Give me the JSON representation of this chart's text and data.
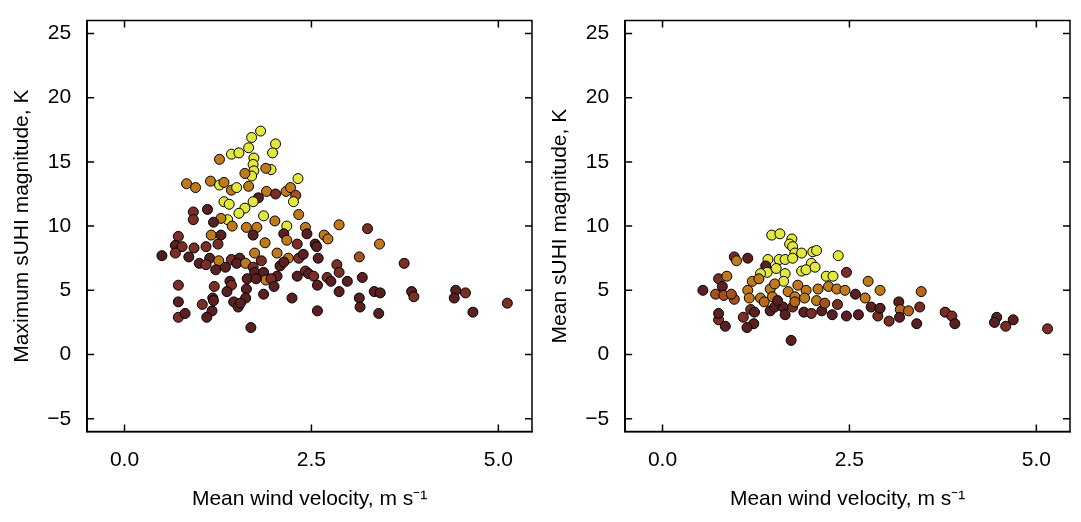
{
  "chart_data": [
    {
      "type": "scatter",
      "xlabel": "Mean wind velocity, m s⁻¹",
      "ylabel": "Maximum sUHI magnitude, K",
      "xlim": [
        -0.5,
        5.45
      ],
      "ylim": [
        -6,
        26
      ],
      "xticks": [
        {
          "value": 0,
          "label": "0.0"
        },
        {
          "value": 2.5,
          "label": "2.5"
        },
        {
          "value": 5,
          "label": "5.0"
        }
      ],
      "yticks": [
        {
          "value": -5,
          "label": "−5"
        },
        0,
        5,
        10,
        15,
        20,
        25
      ],
      "x": [
        1.82,
        1.7,
        2.02,
        1.98,
        1.66,
        1.43,
        1.53,
        1.73,
        1.72,
        1.73,
        1.96,
        1.89,
        1.7,
        1.61,
        1.27,
        2.32,
        0.83,
        0.95,
        1.15,
        1.27,
        1.33,
        1.43,
        1.5,
        1.66,
        1.9,
        2.02,
        2.16,
        2.22,
        2.29,
        2.26,
        1.79,
        1.72,
        1.33,
        1.4,
        1.61,
        1.53,
        1.38,
        1.86,
        2.17,
        2.33,
        0.92,
        0.92,
        1.11,
        1.29,
        1.19,
        1.44,
        2.01,
        1.63,
        1.77,
        2.42,
        2.87,
        3.25,
        3.41,
        0.72,
        1.16,
        1.29,
        1.72,
        2.13,
        2.44,
        2.67,
        2.72,
        1.88,
        2.17,
        2.31,
        2.55,
        2.57,
        0.68,
        0.77,
        0.93,
        1.09,
        1.25,
        0.5,
        0.68,
        0.86,
        1.14,
        1.26,
        1.43,
        1.54,
        1.74,
        1.83,
        2.04,
        2.19,
        2.33,
        2.39,
        2.59,
        3.14,
        1.0,
        1.09,
        1.22,
        1.35,
        1.5,
        1.62,
        1.72,
        2.08,
        2.13,
        1.74,
        1.86,
        2.04,
        2.31,
        2.42,
        2.46,
        2.53,
        2.71,
        2.84,
        2.87,
        2.98,
        3.18,
        2.76,
        2.58,
        1.89,
        1.96,
        2.0,
        1.64,
        1.76,
        1.41,
        1.43,
        1.63,
        1.37,
        1.2,
        0.72,
        2.87,
        3.34,
        3.42,
        3.14,
        3.15,
        3.4,
        2.58,
        2.24,
        1.86,
        1.62,
        1.46,
        1.52,
        1.55,
        1.18,
        1.19,
        1.04,
        1.17,
        1.1,
        0.72,
        0.72,
        0.81,
        1.69,
        3.74,
        3.84,
        3.87,
        4.43,
        4.41,
        4.56,
        4.66,
        5.12
      ],
      "values": [
        17.4,
        16.9,
        16.4,
        15.7,
        16.1,
        15.6,
        15.7,
        15.3,
        14.8,
        14.3,
        14.4,
        14.5,
        13.9,
        14.1,
        15.2,
        13.7,
        13.3,
        13.0,
        13.5,
        13.2,
        13.4,
        12.8,
        13.0,
        13.1,
        12.7,
        12.5,
        12.7,
        13.0,
        12.4,
        11.9,
        12.2,
        11.9,
        11.9,
        11.7,
        11.4,
        11.0,
        10.5,
        10.8,
        10.0,
        10.9,
        11.1,
        10.5,
        11.3,
        10.6,
        10.3,
        10.0,
        10.4,
        9.9,
        9.9,
        9.9,
        10.1,
        9.8,
        8.6,
        9.2,
        9.3,
        9.3,
        9.3,
        9.4,
        9.4,
        9.3,
        9.0,
        8.7,
        8.9,
        8.6,
        8.6,
        8.4,
        8.5,
        8.4,
        8.3,
        8.4,
        8.6,
        7.7,
        7.9,
        7.6,
        7.5,
        7.3,
        7.4,
        7.5,
        7.9,
        7.3,
        7.9,
        7.5,
        7.5,
        7.8,
        7.5,
        7.6,
        7.1,
        7.0,
        6.6,
        6.8,
        7.1,
        7.1,
        6.8,
        6.9,
        7.2,
        6.4,
        6.4,
        6.1,
        6.1,
        6.5,
        6.3,
        6.1,
        6.0,
        7.0,
        6.4,
        5.7,
        6.0,
        5.7,
        5.4,
        5.8,
        5.9,
        5.3,
        5.9,
        5.9,
        5.7,
        5.4,
        5.1,
        4.9,
        5.3,
        5.4,
        4.9,
        4.9,
        4.8,
        4.4,
        3.7,
        3.2,
        3.4,
        4.4,
        4.7,
        4.4,
        4.1,
        3.7,
        4.0,
        4.4,
        4.2,
        3.9,
        3.4,
        2.9,
        4.1,
        2.9,
        3.2,
        2.1,
        7.1,
        4.9,
        4.5,
        5.0,
        4.4,
        4.8,
        3.3,
        4.0
      ],
      "colors": [
        "#e3e83c",
        "#e3e83c",
        "#e3e83c",
        "#e3e83c",
        "#e3e83c",
        "#e3e83c",
        "#e3e83c",
        "#e3e83c",
        "#e3e83c",
        "#e3e83c",
        "#e3e83c",
        "#c07a1c",
        "#e3e83c",
        "#c07a1c",
        "#c07a1c",
        "#e3e83c",
        "#c07a1c",
        "#c07a1c",
        "#c07a1c",
        "#e3e83c",
        "#c07a1c",
        "#c07a1c",
        "#e3e83c",
        "#c07a1c",
        "#c07a1c",
        "#7a2e25",
        "#c07a1c",
        "#c07a1c",
        "#a5501e",
        "#e3e83c",
        "#5a1f20",
        "#e3e83c",
        "#e3e83c",
        "#e3e83c",
        "#e3e83c",
        "#e3e83c",
        "#e3e83c",
        "#e3e83c",
        "#e3e83c",
        "#c07a1c",
        "#7a2e25",
        "#7a2e25",
        "#5a1f20",
        "#c07a1c",
        "#5a1f20",
        "#c07a1c",
        "#c07a1c",
        "#c07a1c",
        "#c07a1c",
        "#c07a1c",
        "#c07a1c",
        "#7a2e25",
        "#c07a1c",
        "#7a2e25",
        "#c07a1c",
        "#5a1f20",
        "#5a1f20",
        "#5a1f20",
        "#5a1f20",
        "#c07a1c",
        "#c07a1c",
        "#c07a1c",
        "#c07a1c",
        "#7a2e25",
        "#5a1f20",
        "#5a1f20",
        "#5a1f20",
        "#7a2e25",
        "#7a2e25",
        "#7a2e25",
        "#7a2e25",
        "#4e1d1f",
        "#7a2e25",
        "#5a1f20",
        "#5a1f20",
        "#c07a1c",
        "#7a2e25",
        "#5a1f20",
        "#c07a1c",
        "#7a2e25",
        "#c07a1c",
        "#c07a1c",
        "#7a2e25",
        "#5a1f20",
        "#5a1f20",
        "#a5501e",
        "#5a1f20",
        "#7a2e25",
        "#5a1f20",
        "#5a1f20",
        "#5a1f20",
        "#c07a1c",
        "#7a2e25",
        "#5a1f20",
        "#5a1f20",
        "#5a1f20",
        "#5a1f20",
        "#5a1f20",
        "#5a1f20",
        "#7a2e25",
        "#5a1f20",
        "#7a2e25",
        "#7a2e25",
        "#7a2e25",
        "#7a2e25",
        "#5a1f20",
        "#5a1f20",
        "#5a1f20",
        "#5a1f20",
        "#c07a1c",
        "#7a2e25",
        "#5a1f20",
        "#5a1f20",
        "#5a1f20",
        "#5a1f20",
        "#7a2e25",
        "#5a1f20",
        "#5a1f20",
        "#7a2e25",
        "#7a2e25",
        "#5a1f20",
        "#5a1f20",
        "#5a1f20",
        "#5a1f20",
        "#5a1f20",
        "#5a1f20",
        "#5a1f20",
        "#5a1f20",
        "#5a1f20",
        "#5a1f20",
        "#5a1f20",
        "#5a1f20",
        "#5a1f20",
        "#5a1f20",
        "#5a1f20",
        "#7a2e25",
        "#5a1f20",
        "#5a1f20",
        "#5a1f20",
        "#7a2e25",
        "#5a1f20",
        "#5a1f20",
        "#7a2e25",
        "#5a1f20",
        "#7a2e25",
        "#5a1f20",
        "#5a1f20",
        "#7a2e25",
        "#5a1f20",
        "#7a2e25"
      ]
    },
    {
      "type": "scatter",
      "xlabel": "Mean wind velocity, m s⁻¹",
      "ylabel": "Mean sUHI magnitude, K",
      "xlim": [
        -0.5,
        5.45
      ],
      "ylim": [
        -6,
        26
      ],
      "xticks": [
        {
          "value": 0,
          "label": "0.0"
        },
        {
          "value": 2.5,
          "label": "2.5"
        },
        {
          "value": 5,
          "label": "5.0"
        }
      ],
      "yticks": [
        {
          "value": -5,
          "label": "−5"
        },
        0,
        5,
        10,
        15,
        20,
        25
      ],
      "x": [
        1.46,
        1.57,
        1.73,
        1.7,
        1.74,
        1.77,
        1.86,
        2.01,
        2.06,
        2.35,
        0.96,
        0.99,
        1.14,
        1.41,
        1.56,
        1.64,
        1.74,
        1.38,
        1.99,
        1.52,
        1.64,
        1.4,
        1.31,
        1.86,
        1.92,
        2.04,
        2.19,
        2.28,
        1.62,
        2.46,
        2.75,
        2.91,
        3.46,
        0.54,
        0.75,
        0.86,
        0.8,
        0.71,
        0.82,
        0.96,
        0.92,
        1.14,
        1.2,
        1.29,
        1.16,
        1.31,
        1.44,
        1.47,
        1.68,
        1.77,
        1.92,
        1.9,
        2.06,
        2.22,
        2.33,
        2.44,
        1.18,
        1.23,
        1.22,
        1.08,
        1.13,
        1.44,
        1.5,
        1.61,
        1.64,
        1.74,
        1.89,
        1.99,
        2.13,
        2.27,
        2.34,
        2.46,
        2.58,
        2.62,
        2.71,
        2.79,
        2.88,
        2.91,
        3.03,
        3.16,
        3.18,
        3.29,
        3.17,
        3.4,
        3.44,
        0.75,
        0.84,
        0.75,
        1.72,
        3.78,
        3.87,
        3.91,
        4.47,
        4.44,
        4.59,
        4.69,
        5.15,
        1.5,
        1.81,
        2.08,
        1.36,
        1.77,
        2.17,
        1.54
      ],
      "values": [
        9.3,
        9.4,
        9.0,
        8.6,
        8.4,
        7.9,
        7.9,
        8.0,
        8.1,
        7.7,
        7.6,
        7.3,
        7.5,
        7.4,
        7.4,
        7.4,
        7.5,
        6.9,
        7.1,
        6.7,
        6.3,
        6.4,
        6.3,
        6.5,
        6.6,
        6.8,
        6.1,
        6.1,
        5.7,
        6.4,
        5.7,
        5.0,
        4.9,
        5.0,
        5.9,
        6.1,
        5.3,
        4.7,
        4.6,
        4.3,
        4.7,
        5.0,
        5.7,
        5.9,
        4.4,
        4.4,
        5.1,
        4.5,
        4.9,
        4.5,
        5.0,
        4.4,
        4.2,
        5.3,
        5.1,
        5.0,
        3.5,
        3.3,
        2.4,
        2.9,
        2.1,
        3.4,
        3.7,
        3.7,
        3.1,
        3.7,
        3.3,
        3.2,
        3.4,
        3.1,
        3.9,
        3.0,
        4.7,
        3.1,
        4.4,
        3.7,
        3.0,
        3.6,
        2.6,
        4.1,
        3.5,
        3.4,
        2.9,
        2.4,
        3.7,
        2.7,
        2.2,
        3.2,
        1.1,
        3.3,
        3.0,
        2.4,
        2.9,
        2.5,
        2.2,
        2.7,
        2.0,
        5.5,
        5.4,
        5.1,
        4.1,
        4.1,
        4.0,
        4.2
      ],
      "colors": [
        "#e3e83c",
        "#e3e83c",
        "#e3e83c",
        "#e3e83c",
        "#e3e83c",
        "#e3e83c",
        "#e3e83c",
        "#e3e83c",
        "#e3e83c",
        "#e3e83c",
        "#7a2e25",
        "#c07a1c",
        "#5a1f20",
        "#e3e83c",
        "#e3e83c",
        "#e3e83c",
        "#e3e83c",
        "#5a1f20",
        "#e3e83c",
        "#e3e83c",
        "#e3e83c",
        "#e3e83c",
        "#e3e83c",
        "#e3e83c",
        "#e3e83c",
        "#e3e83c",
        "#e3e83c",
        "#e3e83c",
        "#e3e83c",
        "#7a2e25",
        "#c07a1c",
        "#c07a1c",
        "#b8661a",
        "#5a1f20",
        "#7a2e25",
        "#c07a1c",
        "#5a1f20",
        "#a5501e",
        "#a5501e",
        "#a5501e",
        "#a5501e",
        "#c07a1c",
        "#c07a1c",
        "#c07a1c",
        "#c07a1c",
        "#c07a1c",
        "#c07a1c",
        "#c07a1c",
        "#c07a1c",
        "#c07a1c",
        "#c07a1c",
        "#c07a1c",
        "#c07a1c",
        "#c07a1c",
        "#c07a1c",
        "#c07a1c",
        "#7a2e25",
        "#5a1f20",
        "#5a1f20",
        "#7a2e25",
        "#5a1f20",
        "#5a1f20",
        "#5a1f20",
        "#5a1f20",
        "#5a1f20",
        "#7a2e25",
        "#5a1f20",
        "#7a2e25",
        "#5a1f20",
        "#5a1f20",
        "#7a2e25",
        "#5a1f20",
        "#5a1f20",
        "#5a1f20",
        "#c07a1c",
        "#5a1f20",
        "#7a2e25",
        "#5a1f20",
        "#7a2e25",
        "#5a1f20",
        "#b8661a",
        "#b8661a",
        "#5a1f20",
        "#5a1f20",
        "#7a2e25",
        "#7a2e25",
        "#5a1f20",
        "#5a1f20",
        "#5a1f20",
        "#7a2e25",
        "#7a2e25",
        "#5a1f20",
        "#5a1f20",
        "#5a1f20",
        "#7a2e25",
        "#5a1f20",
        "#7a2e25",
        "#c07a1c",
        "#c07a1c",
        "#c07a1c",
        "#b8661a",
        "#b8661a",
        "#a5501e",
        "#5a1f20"
      ]
    }
  ]
}
